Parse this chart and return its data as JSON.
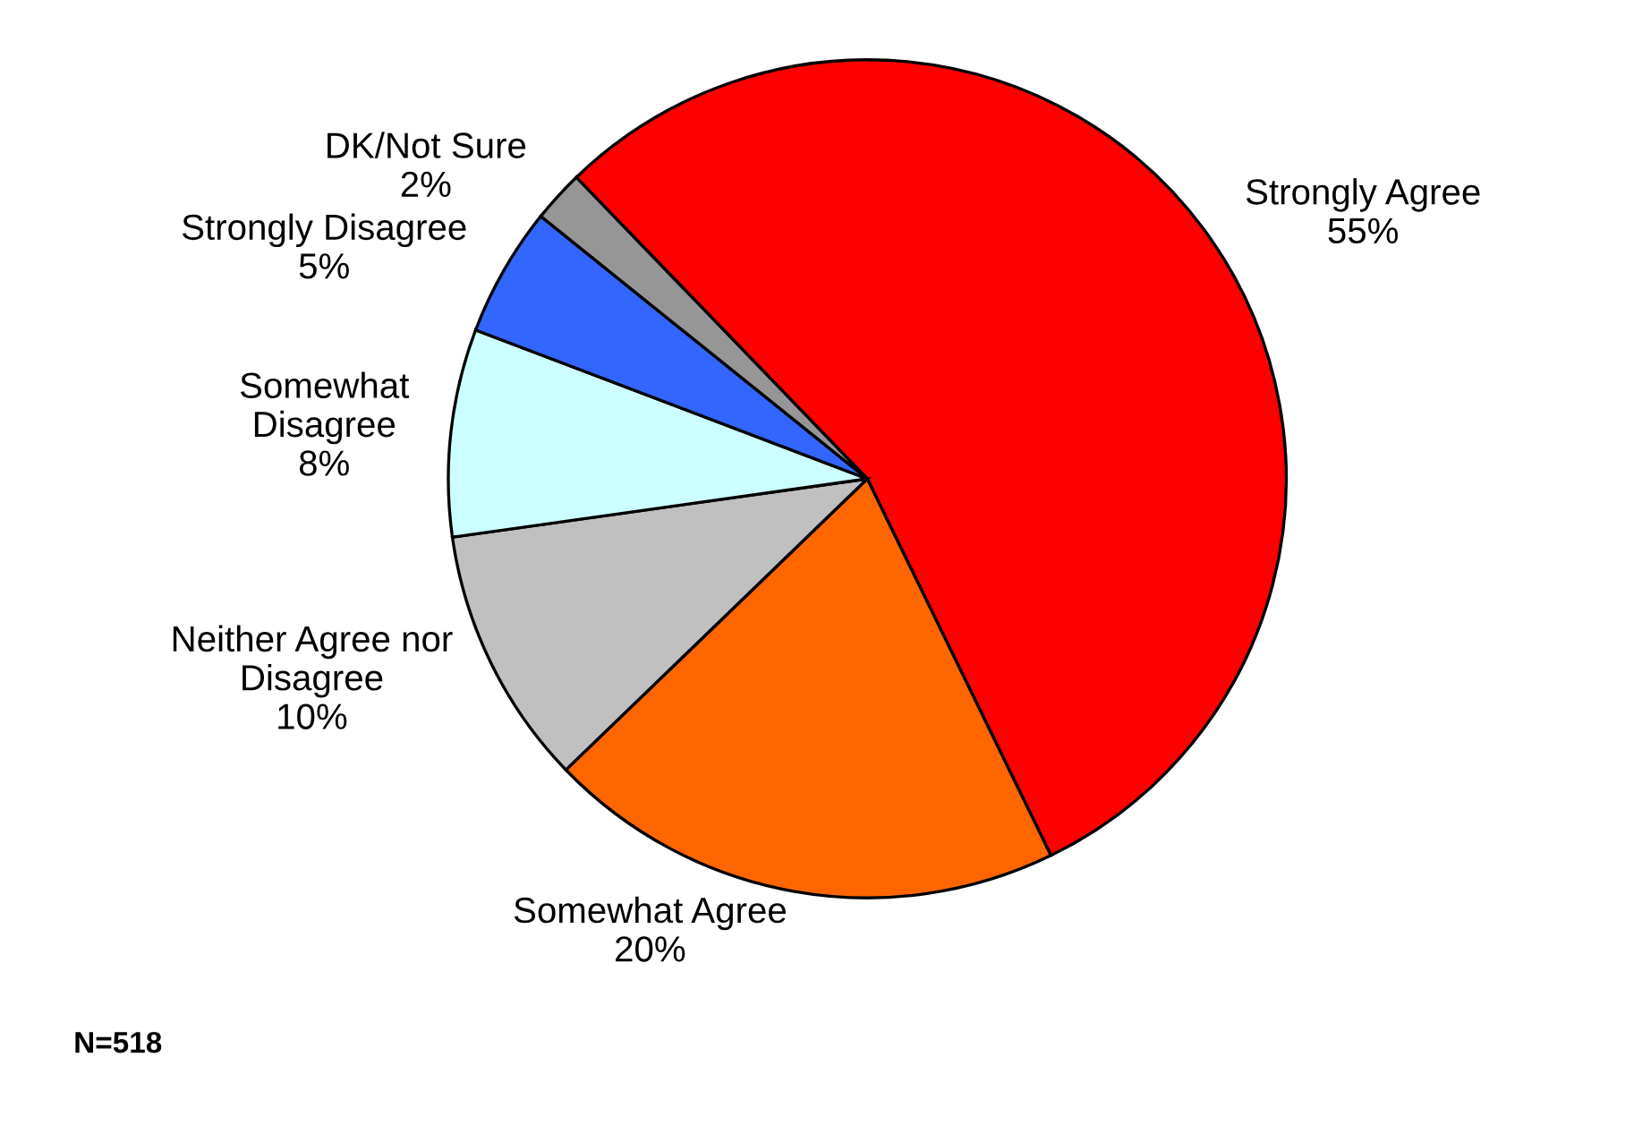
{
  "chart_data": {
    "type": "pie",
    "categories": [
      "Strongly Agree",
      "Somewhat Agree",
      "Neither Agree nor\nDisagree",
      "Somewhat\nDisagree",
      "Strongly Disagree",
      "DK/Not Sure"
    ],
    "values": [
      55,
      20,
      10,
      8,
      5,
      2
    ],
    "value_labels": [
      "55%",
      "20%",
      "10%",
      "8%",
      "5%",
      "2%"
    ],
    "colors": [
      "#ff0000",
      "#ff6600",
      "#c0c0c0",
      "#ccffff",
      "#3366ff",
      "#969696"
    ],
    "annotations": [
      "N=518"
    ]
  }
}
